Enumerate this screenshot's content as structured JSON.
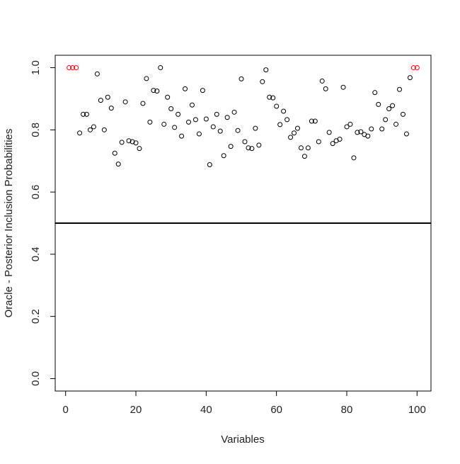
{
  "chart_data": {
    "type": "scatter",
    "x_label": "Variables",
    "y_label": "Oracle - Posterior Inclusion Probabilities",
    "x": [
      1,
      2,
      3,
      4,
      5,
      6,
      7,
      8,
      9,
      10,
      11,
      12,
      13,
      14,
      15,
      16,
      17,
      18,
      19,
      20,
      21,
      22,
      23,
      24,
      25,
      26,
      27,
      28,
      29,
      30,
      31,
      32,
      33,
      34,
      35,
      36,
      37,
      38,
      39,
      40,
      41,
      42,
      43,
      44,
      45,
      46,
      47,
      48,
      49,
      50,
      51,
      52,
      53,
      54,
      55,
      56,
      57,
      58,
      59,
      60,
      61,
      62,
      63,
      64,
      65,
      66,
      67,
      68,
      69,
      70,
      71,
      72,
      73,
      74,
      75,
      76,
      77,
      78,
      79,
      80,
      81,
      82,
      83,
      84,
      85,
      86,
      87,
      88,
      89,
      90,
      91,
      92,
      93,
      94,
      95,
      96,
      97,
      98,
      99,
      100
    ],
    "values": [
      1.0,
      1.0,
      1.0,
      0.79,
      0.85,
      0.85,
      0.8,
      0.81,
      0.98,
      0.895,
      0.8,
      0.905,
      0.87,
      0.725,
      0.69,
      0.76,
      0.89,
      0.765,
      0.762,
      0.758,
      0.74,
      0.885,
      0.965,
      0.825,
      0.927,
      0.925,
      1.0,
      0.818,
      0.905,
      0.868,
      0.808,
      0.85,
      0.78,
      0.932,
      0.825,
      0.88,
      0.833,
      0.787,
      0.927,
      0.835,
      0.688,
      0.81,
      0.85,
      0.796,
      0.717,
      0.84,
      0.747,
      0.857,
      0.798,
      0.964,
      0.762,
      0.742,
      0.74,
      0.805,
      0.751,
      0.955,
      0.993,
      0.905,
      0.903,
      0.876,
      0.817,
      0.86,
      0.833,
      0.776,
      0.79,
      0.805,
      0.742,
      0.715,
      0.742,
      0.828,
      0.828,
      0.762,
      0.957,
      0.932,
      0.792,
      0.756,
      0.765,
      0.77,
      0.937,
      0.81,
      0.818,
      0.71,
      0.792,
      0.794,
      0.785,
      0.78,
      0.803,
      0.92,
      0.882,
      0.803,
      0.833,
      0.868,
      0.878,
      0.818,
      0.93,
      0.85,
      0.787,
      0.968,
      1.0,
      1.0
    ],
    "colors": [
      "#ff0000",
      "#ff0000",
      "#ff0000",
      "#000000",
      "#000000",
      "#000000",
      "#000000",
      "#000000",
      "#000000",
      "#000000",
      "#000000",
      "#000000",
      "#000000",
      "#000000",
      "#000000",
      "#000000",
      "#000000",
      "#000000",
      "#000000",
      "#000000",
      "#000000",
      "#000000",
      "#000000",
      "#000000",
      "#000000",
      "#000000",
      "#000000",
      "#000000",
      "#000000",
      "#000000",
      "#000000",
      "#000000",
      "#000000",
      "#000000",
      "#000000",
      "#000000",
      "#000000",
      "#000000",
      "#000000",
      "#000000",
      "#000000",
      "#000000",
      "#000000",
      "#000000",
      "#000000",
      "#000000",
      "#000000",
      "#000000",
      "#000000",
      "#000000",
      "#000000",
      "#000000",
      "#000000",
      "#000000",
      "#000000",
      "#000000",
      "#000000",
      "#000000",
      "#000000",
      "#000000",
      "#000000",
      "#000000",
      "#000000",
      "#000000",
      "#000000",
      "#000000",
      "#000000",
      "#000000",
      "#000000",
      "#000000",
      "#000000",
      "#000000",
      "#000000",
      "#000000",
      "#000000",
      "#000000",
      "#000000",
      "#000000",
      "#000000",
      "#000000",
      "#000000",
      "#000000",
      "#000000",
      "#000000",
      "#000000",
      "#000000",
      "#000000",
      "#000000",
      "#000000",
      "#000000",
      "#000000",
      "#000000",
      "#000000",
      "#000000",
      "#000000",
      "#000000",
      "#000000",
      "#000000",
      "#ff0000",
      "#ff0000"
    ],
    "hline": 0.5,
    "xlim": [
      -2.96,
      103.96
    ],
    "ylim": [
      -0.04,
      1.04
    ],
    "xticks": [
      0,
      20,
      40,
      60,
      80,
      100
    ],
    "yticks": [
      {
        "value": 0,
        "label": "0.0"
      },
      0.2,
      0.4,
      0.6,
      0.8,
      {
        "value": 1,
        "label": "1.0"
      }
    ]
  }
}
